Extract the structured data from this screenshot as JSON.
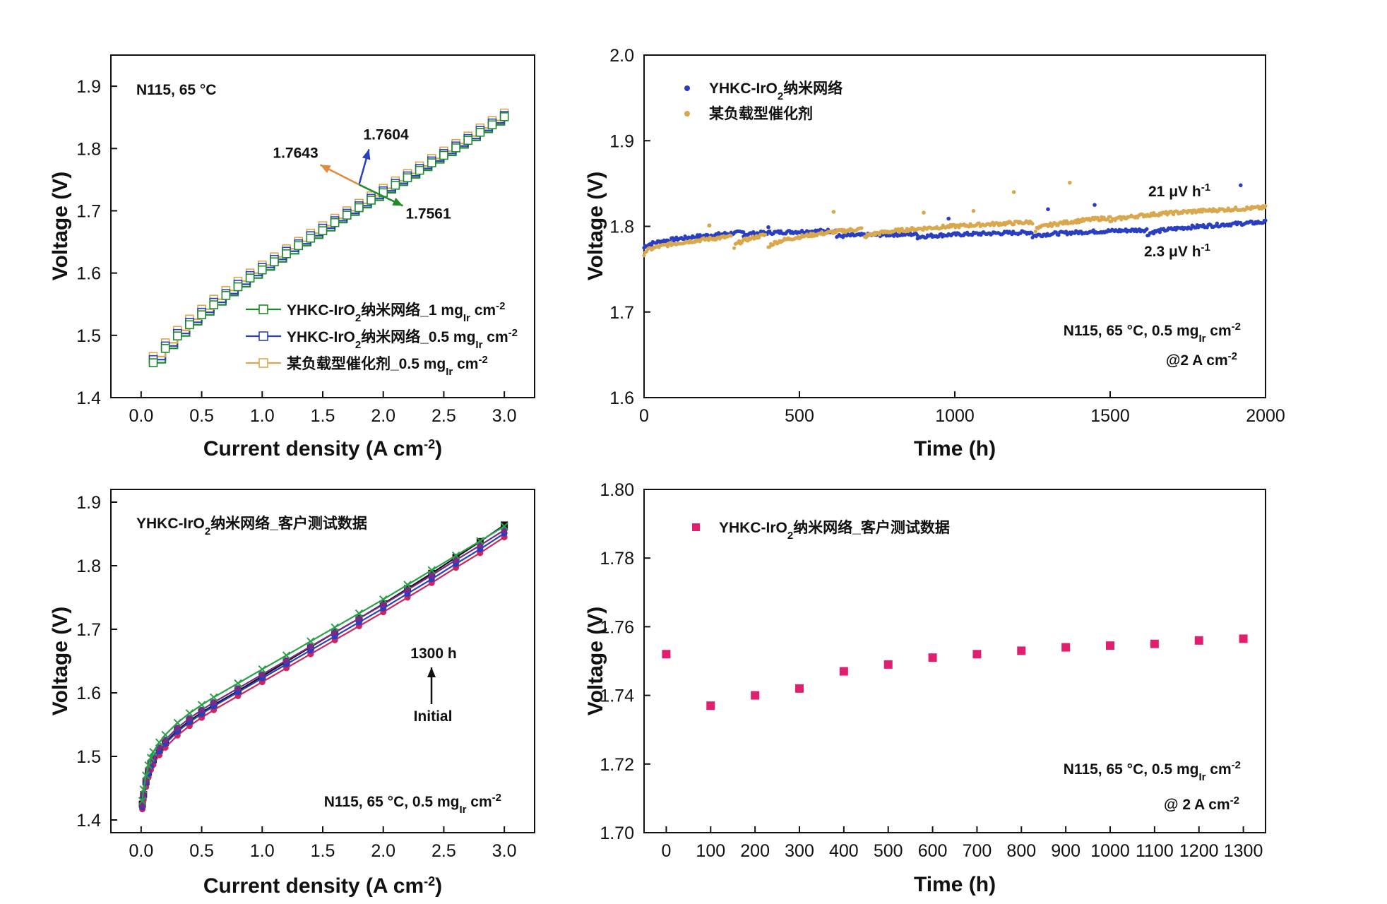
{
  "chart_data": [
    {
      "id": "a",
      "type": "line",
      "xlabel": "Current density (A cm-2)",
      "ylabel": "Voltage (V)",
      "xlim": [
        -0.25,
        3.25
      ],
      "ylim": [
        1.4,
        1.95
      ],
      "xticks": [
        "0.0",
        "0.5",
        "1.0",
        "1.5",
        "2.0",
        "2.5",
        "3.0"
      ],
      "yticks": [
        "1.4",
        "1.5",
        "1.6",
        "1.7",
        "1.8",
        "1.9"
      ],
      "condition": "N115, 65 °C",
      "annotations": [
        {
          "text": "1.7604",
          "color": "#2a3fbf"
        },
        {
          "text": "1.7643",
          "color": "#e08a3c"
        },
        {
          "text": "1.7561",
          "color": "#1e8a2a"
        }
      ],
      "legend": [
        {
          "label": "YHKC-IrO2纳米网络_1 mgIr cm-2",
          "color": "#1e8a2a"
        },
        {
          "label": "YHKC-IrO2纳米网络_0.5 mgIr cm-2",
          "color": "#2a3fbf"
        },
        {
          "label": "某负载型催化剂_0.5 mgIr cm-2",
          "color": "#d9a84e"
        }
      ],
      "series": [
        {
          "name": "YHKC-IrO2纳米网络_1 mgIr cm-2",
          "color": "#1e8a2a",
          "x": [
            0.1,
            0.2,
            0.3,
            0.4,
            0.5,
            0.6,
            0.7,
            0.8,
            0.9,
            1.0,
            1.1,
            1.2,
            1.3,
            1.4,
            1.5,
            1.6,
            1.7,
            1.8,
            1.9,
            2.0,
            2.1,
            2.2,
            2.3,
            2.4,
            2.5,
            2.6,
            2.7,
            2.8,
            2.9,
            3.0
          ],
          "values": [
            1.456,
            1.479,
            1.499,
            1.517,
            1.533,
            1.549,
            1.564,
            1.578,
            1.592,
            1.605,
            1.618,
            1.631,
            1.644,
            1.656,
            1.668,
            1.681,
            1.693,
            1.705,
            1.717,
            1.729,
            1.741,
            1.753,
            1.765,
            1.777,
            1.789,
            1.801,
            1.813,
            1.826,
            1.838,
            1.851
          ]
        },
        {
          "name": "YHKC-IrO2纳米网络_0.5 mgIr cm-2",
          "color": "#2a3fbf",
          "x": [
            0.1,
            0.2,
            0.3,
            0.4,
            0.5,
            0.6,
            0.7,
            0.8,
            0.9,
            1.0,
            1.1,
            1.2,
            1.3,
            1.4,
            1.5,
            1.6,
            1.7,
            1.8,
            1.9,
            2.0,
            2.1,
            2.2,
            2.3,
            2.4,
            2.5,
            2.6,
            2.7,
            2.8,
            2.9,
            3.0
          ],
          "values": [
            1.461,
            1.483,
            1.503,
            1.521,
            1.537,
            1.553,
            1.567,
            1.582,
            1.596,
            1.609,
            1.622,
            1.635,
            1.647,
            1.66,
            1.672,
            1.684,
            1.696,
            1.708,
            1.72,
            1.732,
            1.744,
            1.756,
            1.768,
            1.78,
            1.792,
            1.804,
            1.816,
            1.829,
            1.841,
            1.853
          ]
        },
        {
          "name": "某负载型催化剂_0.5 mgIr cm-2",
          "color": "#d9a84e",
          "x": [
            0.1,
            0.2,
            0.3,
            0.4,
            0.5,
            0.6,
            0.7,
            0.8,
            0.9,
            1.0,
            1.1,
            1.2,
            1.3,
            1.4,
            1.5,
            1.6,
            1.7,
            1.8,
            1.9,
            2.0,
            2.1,
            2.2,
            2.3,
            2.4,
            2.5,
            2.6,
            2.7,
            2.8,
            2.9,
            3.0
          ],
          "values": [
            1.466,
            1.488,
            1.508,
            1.526,
            1.542,
            1.558,
            1.572,
            1.587,
            1.6,
            1.613,
            1.626,
            1.639,
            1.651,
            1.664,
            1.676,
            1.688,
            1.7,
            1.712,
            1.724,
            1.736,
            1.748,
            1.76,
            1.772,
            1.784,
            1.796,
            1.808,
            1.82,
            1.833,
            1.845,
            1.857
          ]
        }
      ]
    },
    {
      "id": "b",
      "type": "scatter",
      "xlabel": "Time (h)",
      "ylabel": "Voltage (V)",
      "xlim": [
        0,
        2000
      ],
      "ylim": [
        1.6,
        2.0
      ],
      "xticks": [
        "0",
        "500",
        "1000",
        "1500",
        "2000"
      ],
      "yticks": [
        "1.6",
        "1.7",
        "1.8",
        "1.9",
        "2.0"
      ],
      "condition_line1": "N115, 65 °C, 0.5 mgIr cm-2",
      "condition_line2": "@2 A cm-2",
      "rate_labels": [
        {
          "text": "21 μV h-1",
          "color": "#d9a84e"
        },
        {
          "text": "2.3 μV h-1",
          "color": "#2a3fbf"
        }
      ],
      "legend": [
        {
          "label": "YHKC-IrO2纳米网络",
          "color": "#2a3fbf"
        },
        {
          "label": "某负载型催化剂",
          "color": "#d9a84e"
        }
      ],
      "series": [
        {
          "name": "YHKC-IrO2纳米网络",
          "color": "#2a3fbf",
          "segments": [
            [
              0,
              1.775,
              320,
              1.793
            ],
            [
              320,
              1.79,
              620,
              1.795
            ],
            [
              620,
              1.788,
              880,
              1.791
            ],
            [
              880,
              1.787,
              1250,
              1.793
            ],
            [
              1250,
              1.788,
              1620,
              1.796
            ],
            [
              1620,
              1.79,
              2000,
              1.805
            ]
          ],
          "outliers": [
            [
              210,
              1.801
            ],
            [
              400,
              1.799
            ],
            [
              980,
              1.809
            ],
            [
              1300,
              1.82
            ],
            [
              1450,
              1.825
            ],
            [
              1920,
              1.848
            ]
          ]
        },
        {
          "name": "某负载型催化剂",
          "color": "#d9a84e",
          "segments": [
            [
              0,
              1.768,
              280,
              1.788
            ],
            [
              290,
              1.775,
              390,
              1.79
            ],
            [
              400,
              1.775,
              700,
              1.797
            ],
            [
              710,
              1.787,
              1250,
              1.805
            ],
            [
              1260,
              1.795,
              1500,
              1.81
            ],
            [
              1500,
              1.805,
              2000,
              1.822
            ]
          ],
          "outliers": [
            [
              210,
              1.801
            ],
            [
              610,
              1.817
            ],
            [
              900,
              1.816
            ],
            [
              1060,
              1.818
            ],
            [
              1190,
              1.84
            ],
            [
              1370,
              1.851
            ]
          ]
        }
      ]
    },
    {
      "id": "c",
      "type": "line",
      "xlabel": "Current density (A cm-2)",
      "ylabel": "Voltage (V)",
      "xlim": [
        -0.25,
        3.25
      ],
      "ylim": [
        1.38,
        1.92
      ],
      "xticks": [
        "0.0",
        "0.5",
        "1.0",
        "1.5",
        "2.0",
        "2.5",
        "3.0"
      ],
      "yticks": [
        "1.4",
        "1.5",
        "1.6",
        "1.7",
        "1.8",
        "1.9"
      ],
      "title_note": "YHKC-IrO2纳米网络_客户测试数据",
      "condition": "N115, 65 °C, 0.5 mgIr cm-2",
      "arrow_top_label": "1300 h",
      "arrow_bottom_label": "Initial",
      "series": [
        {
          "name": "Initial",
          "color": "#111111",
          "x": [
            0.01,
            0.02,
            0.04,
            0.06,
            0.08,
            0.1,
            0.15,
            0.2,
            0.3,
            0.4,
            0.5,
            0.6,
            0.8,
            1.0,
            1.2,
            1.4,
            1.6,
            1.8,
            2.0,
            2.2,
            2.4,
            2.6,
            2.8,
            3.0
          ],
          "values": [
            1.425,
            1.44,
            1.46,
            1.475,
            1.487,
            1.495,
            1.51,
            1.522,
            1.541,
            1.556,
            1.569,
            1.581,
            1.603,
            1.626,
            1.649,
            1.672,
            1.695,
            1.717,
            1.74,
            1.764,
            1.788,
            1.813,
            1.838,
            1.864
          ]
        },
        {
          "name": "curve-2",
          "color": "#d0245c",
          "x": [
            0.01,
            0.02,
            0.04,
            0.06,
            0.08,
            0.1,
            0.15,
            0.2,
            0.3,
            0.4,
            0.5,
            0.6,
            0.8,
            1.0,
            1.2,
            1.4,
            1.6,
            1.8,
            2.0,
            2.2,
            2.4,
            2.6,
            2.8,
            3.0
          ],
          "values": [
            1.417,
            1.432,
            1.452,
            1.467,
            1.479,
            1.487,
            1.502,
            1.514,
            1.533,
            1.548,
            1.561,
            1.573,
            1.595,
            1.617,
            1.639,
            1.661,
            1.683,
            1.705,
            1.727,
            1.75,
            1.773,
            1.797,
            1.82,
            1.845
          ]
        },
        {
          "name": "curve-3",
          "color": "#2a3fbf",
          "x": [
            0.01,
            0.02,
            0.04,
            0.06,
            0.08,
            0.1,
            0.15,
            0.2,
            0.3,
            0.4,
            0.5,
            0.6,
            0.8,
            1.0,
            1.2,
            1.4,
            1.6,
            1.8,
            2.0,
            2.2,
            2.4,
            2.6,
            2.8,
            3.0
          ],
          "values": [
            1.42,
            1.436,
            1.457,
            1.472,
            1.484,
            1.493,
            1.508,
            1.52,
            1.539,
            1.554,
            1.567,
            1.579,
            1.601,
            1.623,
            1.645,
            1.667,
            1.689,
            1.711,
            1.733,
            1.756,
            1.779,
            1.803,
            1.826,
            1.851
          ]
        },
        {
          "name": "curve-4",
          "color": "#7a2a8c",
          "x": [
            0.01,
            0.02,
            0.04,
            0.06,
            0.08,
            0.1,
            0.15,
            0.2,
            0.3,
            0.4,
            0.5,
            0.6,
            0.8,
            1.0,
            1.2,
            1.4,
            1.6,
            1.8,
            2.0,
            2.2,
            2.4,
            2.6,
            2.8,
            3.0
          ],
          "values": [
            1.423,
            1.44,
            1.462,
            1.478,
            1.49,
            1.499,
            1.514,
            1.526,
            1.545,
            1.56,
            1.573,
            1.585,
            1.607,
            1.629,
            1.651,
            1.673,
            1.695,
            1.717,
            1.739,
            1.762,
            1.785,
            1.809,
            1.832,
            1.856
          ]
        },
        {
          "name": "1300 h",
          "color": "#2aa04a",
          "x": [
            0.01,
            0.02,
            0.04,
            0.06,
            0.08,
            0.1,
            0.15,
            0.2,
            0.3,
            0.4,
            0.5,
            0.6,
            0.8,
            1.0,
            1.2,
            1.4,
            1.6,
            1.8,
            2.0,
            2.2,
            2.4,
            2.6,
            2.8,
            3.0
          ],
          "values": [
            1.43,
            1.448,
            1.47,
            1.486,
            1.498,
            1.507,
            1.522,
            1.534,
            1.553,
            1.568,
            1.581,
            1.593,
            1.615,
            1.637,
            1.659,
            1.681,
            1.703,
            1.725,
            1.747,
            1.77,
            1.793,
            1.816,
            1.839,
            1.862
          ]
        }
      ]
    },
    {
      "id": "d",
      "type": "scatter",
      "xlabel": "Time (h)",
      "ylabel": "Voltage (V)",
      "xlim": [
        -50,
        1350
      ],
      "ylim": [
        1.7,
        1.8
      ],
      "xticks": [
        "0",
        "100",
        "200",
        "300",
        "400",
        "500",
        "600",
        "700",
        "800",
        "900",
        "1000",
        "1100",
        "1200",
        "1300"
      ],
      "yticks": [
        "1.70",
        "1.72",
        "1.74",
        "1.76",
        "1.78",
        "1.80"
      ],
      "condition_line1": "N115, 65 °C, 0.5 mgIr cm-2",
      "condition_line2": "@ 2 A cm-2",
      "legend": [
        {
          "label": "YHKC-IrO2纳米网络_客户测试数据",
          "color": "#e0206e"
        }
      ],
      "series": [
        {
          "name": "YHKC-IrO2纳米网络_客户测试数据",
          "color": "#e0206e",
          "x": [
            0,
            100,
            200,
            300,
            400,
            500,
            600,
            700,
            800,
            900,
            1000,
            1100,
            1200,
            1300
          ],
          "values": [
            1.752,
            1.737,
            1.74,
            1.742,
            1.747,
            1.749,
            1.751,
            1.752,
            1.753,
            1.754,
            1.7545,
            1.755,
            1.756,
            1.7565
          ]
        }
      ]
    }
  ]
}
